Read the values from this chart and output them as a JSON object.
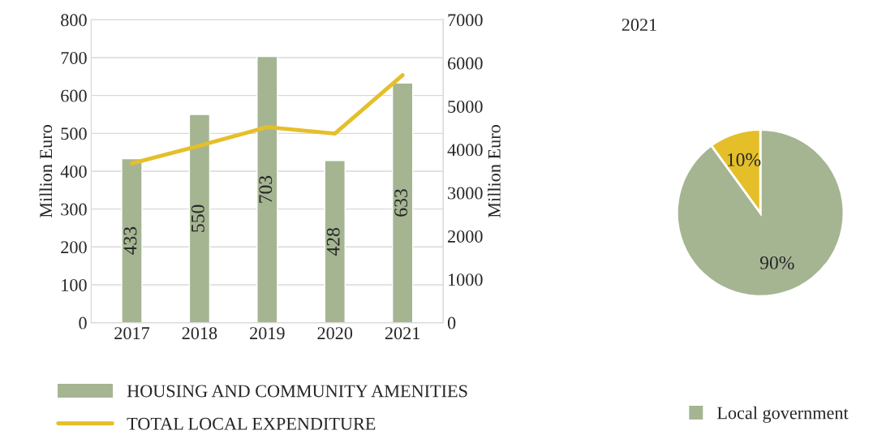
{
  "chart_data": [
    {
      "type": "bar",
      "categories": [
        "2017",
        "2018",
        "2019",
        "2020",
        "2021"
      ],
      "ylabel": "Million Euro",
      "y2label": "Million Euro",
      "ylim": [
        0,
        800
      ],
      "yticks": [
        0,
        100,
        200,
        300,
        400,
        500,
        600,
        700,
        800
      ],
      "y2lim": [
        0,
        7000
      ],
      "y2ticks": [
        0,
        1000,
        2000,
        3000,
        4000,
        5000,
        6000,
        7000
      ],
      "grid": "y",
      "legend": "bottom",
      "series": [
        {
          "name": "HOUSING AND COMMUNITY AMENITIES",
          "type": "bar",
          "color": "#a5b592",
          "values": [
            433,
            550,
            703,
            428,
            633
          ],
          "value_labels": [
            "433",
            "550",
            "703",
            "428",
            "633"
          ]
        },
        {
          "name": "TOTAL LOCAL EXPENDITURE",
          "type": "line",
          "axis": "y2",
          "color": "#e5bf2a",
          "values": [
            3680,
            4090,
            4520,
            4370,
            5720
          ]
        }
      ]
    },
    {
      "type": "pie",
      "title": "2021",
      "categories": [
        "Local government",
        null
      ],
      "values": [
        90,
        10
      ],
      "colors": [
        "#a5b592",
        "#e5bf2a"
      ],
      "value_labels": [
        "90%",
        "10%"
      ],
      "legend": "bottom right"
    }
  ]
}
